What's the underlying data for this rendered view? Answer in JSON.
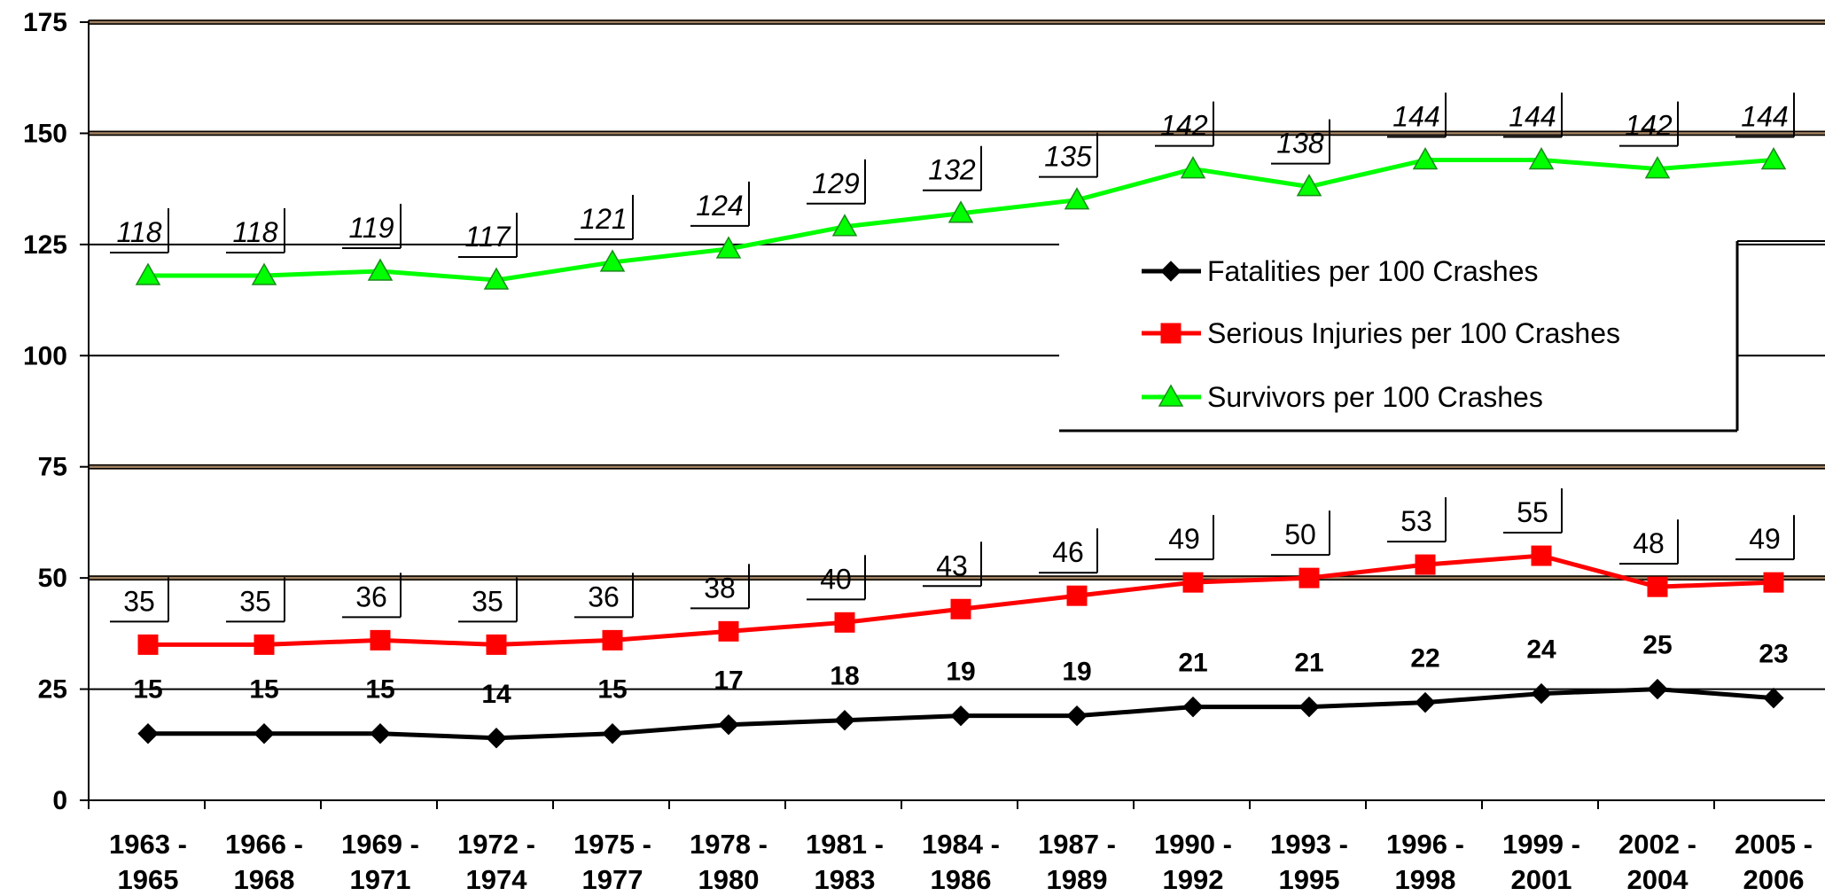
{
  "chart_data": {
    "type": "line",
    "title": "",
    "xlabel": "",
    "ylabel": "",
    "ylim": [
      0,
      175
    ],
    "yticks": [
      "0",
      "25",
      "50",
      "75",
      "100",
      "125",
      "150",
      "175"
    ],
    "grid": true,
    "legend_position": "center-right",
    "categories": [
      [
        "1963 -",
        "1965"
      ],
      [
        "1966 -",
        "1968"
      ],
      [
        "1969 -",
        "1971"
      ],
      [
        "1972 -",
        "1974"
      ],
      [
        "1975 -",
        "1977"
      ],
      [
        "1978 -",
        "1980"
      ],
      [
        "1981 -",
        "1983"
      ],
      [
        "1984 -",
        "1986"
      ],
      [
        "1987 -",
        "1989"
      ],
      [
        "1990 -",
        "1992"
      ],
      [
        "1993 -",
        "1995"
      ],
      [
        "1996 -",
        "1998"
      ],
      [
        "1999 -",
        "2001"
      ],
      [
        "2002 -",
        "2004"
      ],
      [
        "2005 -",
        "2006"
      ]
    ],
    "series": [
      {
        "name": "Fatalities per 100 Crashes",
        "color": "#000000",
        "marker": "diamond",
        "values": [
          15,
          15,
          15,
          14,
          15,
          17,
          18,
          19,
          19,
          21,
          21,
          22,
          24,
          25,
          23
        ],
        "labels": [
          "15",
          "15",
          "15",
          "14",
          "15",
          "17",
          "18",
          "19",
          "19",
          "21",
          "21",
          "22",
          "24",
          "25",
          "23"
        ]
      },
      {
        "name": "Serious Injuries per 100 Crashes",
        "color": "#ff0000",
        "marker": "square",
        "values": [
          35,
          35,
          36,
          35,
          36,
          38,
          40,
          43,
          46,
          49,
          50,
          53,
          55,
          48,
          49
        ],
        "labels": [
          "35",
          "35",
          "36",
          "35",
          "36",
          "38",
          "40",
          "43",
          "46",
          "49",
          "50",
          "53",
          "55",
          "48",
          "49"
        ]
      },
      {
        "name": "Survivors per 100 Crashes",
        "color": "#00ff00",
        "marker": "triangle",
        "values": [
          118,
          118,
          119,
          117,
          121,
          124,
          129,
          132,
          135,
          142,
          138,
          144,
          144,
          142,
          144
        ],
        "labels": [
          "118",
          "118",
          "119",
          "117",
          "121",
          "124",
          "129",
          "132",
          "135",
          "142",
          "138",
          "144",
          "144",
          "142",
          "144"
        ]
      }
    ]
  }
}
